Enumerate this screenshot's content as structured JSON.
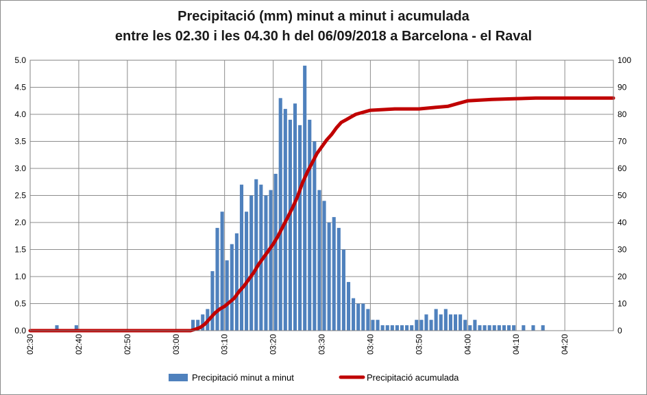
{
  "chart_data": {
    "type": "bar+line",
    "title_line1": "Precipitació (mm) minut a minut i acumulada",
    "title_line2": "entre les 02.30 i les 04.30 h del 06/09/2018 a Barcelona - el Raval",
    "x_tick_labels": [
      "02:30",
      "02:40",
      "02:50",
      "03:00",
      "03:10",
      "03:20",
      "03:30",
      "03:40",
      "03:50",
      "04:00",
      "04:10",
      "04:20"
    ],
    "x_range_minutes": [
      0,
      120
    ],
    "y_left_ticks": [
      "0.0",
      "0.5",
      "1.0",
      "1.5",
      "2.0",
      "2.5",
      "3.0",
      "3.5",
      "4.0",
      "4.5",
      "5.0"
    ],
    "y_left_range": [
      0,
      5
    ],
    "y_right_ticks": [
      "0",
      "10",
      "20",
      "30",
      "40",
      "50",
      "60",
      "70",
      "80",
      "90",
      "100"
    ],
    "y_right_range": [
      0,
      100
    ],
    "grid": true,
    "legend_position": "bottom",
    "series": [
      {
        "name": "Precipitació minut a minut",
        "kind": "bar",
        "axis": "left",
        "color": "#4f81bd",
        "x_minutes": [
          5,
          9,
          33,
          34,
          35,
          36,
          37,
          38,
          39,
          40,
          41,
          42,
          43,
          44,
          45,
          46,
          47,
          48,
          49,
          50,
          51,
          52,
          53,
          54,
          55,
          56,
          57,
          58,
          59,
          60,
          61,
          62,
          63,
          64,
          65,
          66,
          67,
          68,
          69,
          70,
          71,
          72,
          73,
          74,
          75,
          76,
          77,
          78,
          79,
          80,
          81,
          82,
          83,
          84,
          85,
          86,
          87,
          88,
          89,
          90,
          91,
          92,
          93,
          94,
          95,
          96,
          97,
          98,
          99,
          101,
          103,
          105
        ],
        "values": [
          0.1,
          0.1,
          0.2,
          0.2,
          0.3,
          0.4,
          1.1,
          1.9,
          2.2,
          1.3,
          1.6,
          1.8,
          2.7,
          2.2,
          2.5,
          2.8,
          2.7,
          2.5,
          2.6,
          2.9,
          4.3,
          4.1,
          3.9,
          4.2,
          3.8,
          4.9,
          3.9,
          3.5,
          2.6,
          2.4,
          2.0,
          2.1,
          1.9,
          1.5,
          0.9,
          0.6,
          0.5,
          0.5,
          0.4,
          0.2,
          0.2,
          0.1,
          0.1,
          0.1,
          0.1,
          0.1,
          0.1,
          0.1,
          0.2,
          0.2,
          0.3,
          0.2,
          0.4,
          0.3,
          0.4,
          0.3,
          0.3,
          0.3,
          0.2,
          0.1,
          0.2,
          0.1,
          0.1,
          0.1,
          0.1,
          0.1,
          0.1,
          0.1,
          0.1,
          0.1,
          0.1,
          0.1
        ]
      },
      {
        "name": "Precipitació acumulada",
        "kind": "line",
        "axis": "right",
        "color": "#c00000",
        "x_minutes": [
          0,
          33,
          34,
          35,
          36,
          37,
          38,
          39,
          40,
          41,
          42,
          43,
          44,
          45,
          46,
          47,
          48,
          49,
          50,
          51,
          52,
          53,
          54,
          55,
          56,
          57,
          58,
          59,
          60,
          61,
          62,
          63,
          64,
          65,
          66,
          67,
          68,
          69,
          70,
          75,
          80,
          83,
          86,
          88,
          90,
          95,
          100,
          104,
          110,
          116,
          120
        ],
        "values": [
          0,
          0,
          0.5,
          1.2,
          2.5,
          4.5,
          6.5,
          8,
          9,
          10.5,
          12,
          14.5,
          16.5,
          19,
          21.5,
          24.5,
          27,
          29.5,
          32,
          35,
          38.5,
          42,
          45.5,
          49.5,
          54.5,
          58.5,
          62,
          65.5,
          68,
          70.5,
          72.5,
          75,
          77,
          78,
          79,
          80,
          80.5,
          81,
          81.5,
          82,
          82,
          82.5,
          83,
          84,
          85,
          85.5,
          85.8,
          86,
          86,
          86,
          86
        ]
      }
    ]
  }
}
